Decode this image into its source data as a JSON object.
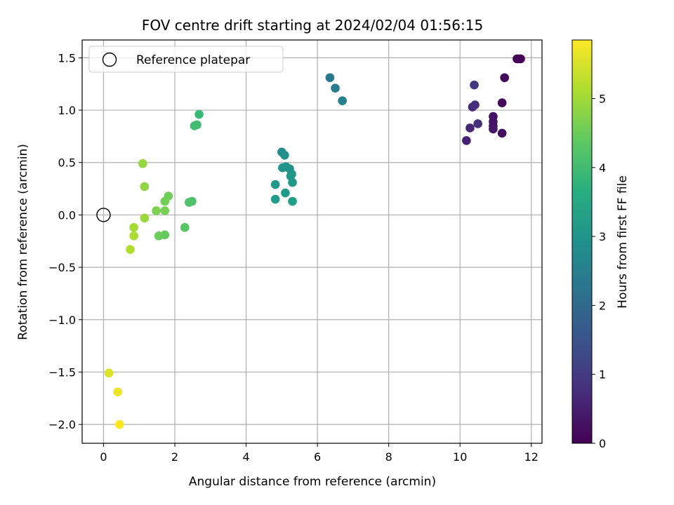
{
  "chart_data": {
    "type": "scatter",
    "title": "FOV centre drift starting at 2024/02/04 01:56:15",
    "xlabel": "Angular distance from reference (arcmin)",
    "ylabel": "Rotation from reference (arcmin)",
    "xlim": [
      -0.6,
      12.3
    ],
    "ylim": [
      -2.18,
      1.67
    ],
    "xticks": [
      "0",
      "2",
      "4",
      "6",
      "8",
      "10",
      "12"
    ],
    "yticks": [
      "1.5",
      "1.0",
      "0.5",
      "0.0",
      "−0.5",
      "−1.0",
      "−1.5",
      "−2.0"
    ],
    "grid": true,
    "legend": {
      "location": "top-left",
      "entries": [
        {
          "label": "Reference platepar",
          "marker": "hollow-circle",
          "x": 0,
          "y": 0
        }
      ]
    },
    "colorbar": {
      "label": "Hours from first FF file",
      "colormap": "viridis",
      "range": [
        0,
        5.85
      ],
      "ticks": [
        "0",
        "1",
        "2",
        "3",
        "4",
        "5"
      ]
    },
    "points": [
      {
        "x": 11.6,
        "y": 1.49,
        "c": 0.0
      },
      {
        "x": 11.65,
        "y": 1.49,
        "c": 0.02
      },
      {
        "x": 11.7,
        "y": 1.49,
        "c": 0.04
      },
      {
        "x": 11.25,
        "y": 1.31,
        "c": 0.1
      },
      {
        "x": 11.18,
        "y": 1.07,
        "c": 0.15
      },
      {
        "x": 11.18,
        "y": 0.78,
        "c": 0.2
      },
      {
        "x": 10.93,
        "y": 0.94,
        "c": 0.25
      },
      {
        "x": 10.93,
        "y": 0.89,
        "c": 0.28
      },
      {
        "x": 10.93,
        "y": 0.85,
        "c": 0.32
      },
      {
        "x": 10.93,
        "y": 0.82,
        "c": 0.36
      },
      {
        "x": 10.18,
        "y": 0.71,
        "c": 0.55
      },
      {
        "x": 10.28,
        "y": 0.83,
        "c": 0.62
      },
      {
        "x": 10.35,
        "y": 1.03,
        "c": 0.7
      },
      {
        "x": 10.42,
        "y": 1.05,
        "c": 0.78
      },
      {
        "x": 10.5,
        "y": 0.87,
        "c": 0.85
      },
      {
        "x": 10.4,
        "y": 1.24,
        "c": 0.95
      },
      {
        "x": 6.35,
        "y": 1.31,
        "c": 2.35
      },
      {
        "x": 6.5,
        "y": 1.21,
        "c": 2.45
      },
      {
        "x": 6.7,
        "y": 1.09,
        "c": 2.55
      },
      {
        "x": 5.0,
        "y": 0.6,
        "c": 2.85
      },
      {
        "x": 5.08,
        "y": 0.57,
        "c": 2.9
      },
      {
        "x": 5.22,
        "y": 0.44,
        "c": 2.95
      },
      {
        "x": 5.12,
        "y": 0.46,
        "c": 3.0
      },
      {
        "x": 5.02,
        "y": 0.45,
        "c": 3.02
      },
      {
        "x": 5.25,
        "y": 0.37,
        "c": 3.05
      },
      {
        "x": 5.28,
        "y": 0.39,
        "c": 3.08
      },
      {
        "x": 5.3,
        "y": 0.31,
        "c": 3.1
      },
      {
        "x": 4.82,
        "y": 0.29,
        "c": 3.12
      },
      {
        "x": 5.1,
        "y": 0.21,
        "c": 3.18
      },
      {
        "x": 4.82,
        "y": 0.15,
        "c": 3.22
      },
      {
        "x": 5.3,
        "y": 0.13,
        "c": 3.28
      },
      {
        "x": 2.68,
        "y": 0.96,
        "c": 3.95
      },
      {
        "x": 2.62,
        "y": 0.86,
        "c": 4.0
      },
      {
        "x": 2.55,
        "y": 0.85,
        "c": 4.05
      },
      {
        "x": 2.48,
        "y": 0.13,
        "c": 4.15
      },
      {
        "x": 2.4,
        "y": 0.12,
        "c": 4.2
      },
      {
        "x": 2.28,
        "y": -0.12,
        "c": 4.3
      },
      {
        "x": 1.72,
        "y": -0.19,
        "c": 4.45
      },
      {
        "x": 1.55,
        "y": -0.2,
        "c": 4.5
      },
      {
        "x": 1.82,
        "y": 0.18,
        "c": 4.55
      },
      {
        "x": 1.72,
        "y": 0.13,
        "c": 4.58
      },
      {
        "x": 1.72,
        "y": 0.04,
        "c": 4.62
      },
      {
        "x": 1.48,
        "y": 0.04,
        "c": 4.68
      },
      {
        "x": 1.15,
        "y": 0.27,
        "c": 4.85
      },
      {
        "x": 1.1,
        "y": 0.49,
        "c": 4.9
      },
      {
        "x": 1.15,
        "y": -0.03,
        "c": 4.95
      },
      {
        "x": 0.85,
        "y": -0.12,
        "c": 5.05
      },
      {
        "x": 0.85,
        "y": -0.2,
        "c": 5.1
      },
      {
        "x": 0.75,
        "y": -0.33,
        "c": 5.15
      },
      {
        "x": 0.15,
        "y": -1.51,
        "c": 5.55
      },
      {
        "x": 0.4,
        "y": -1.69,
        "c": 5.7
      },
      {
        "x": 0.45,
        "y": -2.0,
        "c": 5.85
      }
    ]
  }
}
